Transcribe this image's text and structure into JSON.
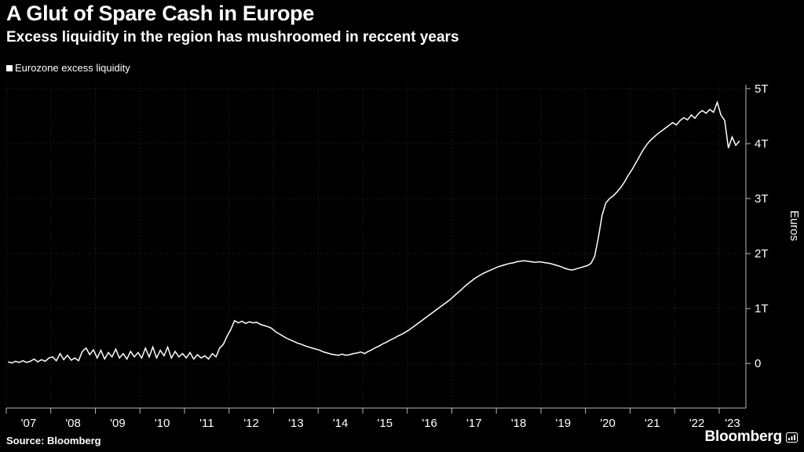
{
  "branding": {
    "wordmark": "Bloomberg"
  },
  "chart_data": {
    "type": "line",
    "title": "A Glut of Spare Cash in Europe",
    "subtitle": "Excess liquidity in the region has mushroomed in reccent years",
    "source": "Source: Bloomberg",
    "xlabel": "",
    "ylabel": "Euros",
    "legend_position": "top-left",
    "grid": "dotted",
    "background": "#000000",
    "grid_color": "#2b2b2b",
    "axis_color": "#b8b8b8",
    "text_color": "#ffffff",
    "ylim": [
      -0.81,
      5.07
    ],
    "x_range": [
      2007.0,
      2023.6
    ],
    "y_tick_values": [
      0,
      1,
      2,
      3,
      4,
      5
    ],
    "y_tick_labels": [
      "0",
      "1T",
      "2T",
      "3T",
      "4T",
      "5T"
    ],
    "x_tick_start_year": 2007,
    "x_ticks": [
      "'07",
      "'08",
      "'09",
      "'10",
      "'11",
      "'12",
      "'13",
      "'14",
      "'15",
      "'16",
      "'17",
      "'18",
      "'19",
      "'20",
      "'21",
      "'22",
      "'23"
    ],
    "x_start": 2007.04,
    "x_step": 0.0833333,
    "x_unit": "decimal-year (monthly points)",
    "y_unit": "trillions of euros",
    "series": [
      {
        "name": "Eurozone excess liquidity",
        "color": "#ffffff",
        "values": [
          0.03,
          0.01,
          0.04,
          0.02,
          0.05,
          0.02,
          0.04,
          0.08,
          0.03,
          0.07,
          0.04,
          0.1,
          0.12,
          0.05,
          0.18,
          0.07,
          0.15,
          0.06,
          0.1,
          0.05,
          0.22,
          0.28,
          0.16,
          0.25,
          0.1,
          0.24,
          0.08,
          0.2,
          0.12,
          0.26,
          0.1,
          0.18,
          0.08,
          0.22,
          0.12,
          0.2,
          0.1,
          0.28,
          0.12,
          0.3,
          0.1,
          0.24,
          0.14,
          0.3,
          0.1,
          0.22,
          0.12,
          0.18,
          0.1,
          0.2,
          0.08,
          0.16,
          0.1,
          0.14,
          0.08,
          0.18,
          0.12,
          0.28,
          0.35,
          0.5,
          0.62,
          0.78,
          0.74,
          0.77,
          0.73,
          0.76,
          0.74,
          0.75,
          0.71,
          0.69,
          0.67,
          0.64,
          0.58,
          0.54,
          0.5,
          0.46,
          0.43,
          0.4,
          0.37,
          0.35,
          0.32,
          0.3,
          0.28,
          0.26,
          0.24,
          0.21,
          0.19,
          0.17,
          0.16,
          0.15,
          0.17,
          0.15,
          0.16,
          0.18,
          0.19,
          0.21,
          0.18,
          0.22,
          0.25,
          0.29,
          0.32,
          0.36,
          0.39,
          0.43,
          0.46,
          0.5,
          0.53,
          0.57,
          0.61,
          0.66,
          0.71,
          0.76,
          0.81,
          0.86,
          0.91,
          0.96,
          1.01,
          1.06,
          1.11,
          1.16,
          1.22,
          1.28,
          1.34,
          1.4,
          1.46,
          1.51,
          1.56,
          1.6,
          1.64,
          1.67,
          1.7,
          1.73,
          1.76,
          1.78,
          1.8,
          1.82,
          1.83,
          1.85,
          1.86,
          1.87,
          1.86,
          1.85,
          1.84,
          1.85,
          1.84,
          1.83,
          1.82,
          1.8,
          1.78,
          1.76,
          1.73,
          1.71,
          1.7,
          1.72,
          1.74,
          1.76,
          1.78,
          1.82,
          1.95,
          2.3,
          2.7,
          2.92,
          3.0,
          3.05,
          3.12,
          3.2,
          3.3,
          3.42,
          3.52,
          3.64,
          3.76,
          3.88,
          3.98,
          4.06,
          4.12,
          4.18,
          4.23,
          4.28,
          4.33,
          4.38,
          4.34,
          4.42,
          4.47,
          4.43,
          4.52,
          4.46,
          4.55,
          4.6,
          4.55,
          4.62,
          4.57,
          4.75,
          4.52,
          4.42,
          3.92,
          4.12,
          3.97,
          4.05
        ]
      }
    ]
  }
}
